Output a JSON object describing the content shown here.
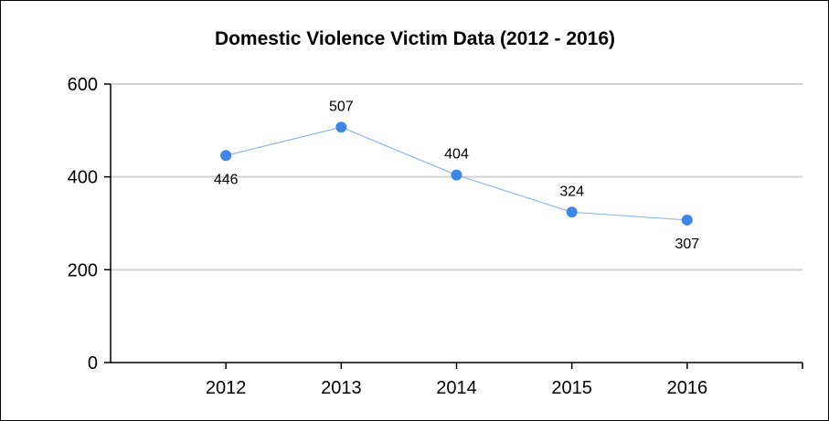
{
  "chart_data": {
    "type": "line",
    "title": "Domestic Violence Victim Data (2012 - 2016)",
    "xlabel": "",
    "ylabel": "",
    "categories": [
      "2012",
      "2013",
      "2014",
      "2015",
      "2016"
    ],
    "series": [
      {
        "values": [
          446,
          507,
          404,
          324,
          307
        ]
      }
    ],
    "data_labels": [
      "446",
      "507",
      "404",
      "324",
      "307"
    ],
    "data_label_positions": [
      "below",
      "above",
      "above",
      "above",
      "below"
    ],
    "ylim": [
      0,
      600
    ],
    "yticks": [
      0,
      200,
      400,
      600
    ],
    "ytick_labels": [
      "0",
      "200",
      "400",
      "600"
    ],
    "grid": true,
    "legend": "none",
    "colors": {
      "line": "#8fb8e8",
      "marker": "#3f87e6",
      "grid": "#d3d3d3",
      "axis": "#000000"
    }
  }
}
